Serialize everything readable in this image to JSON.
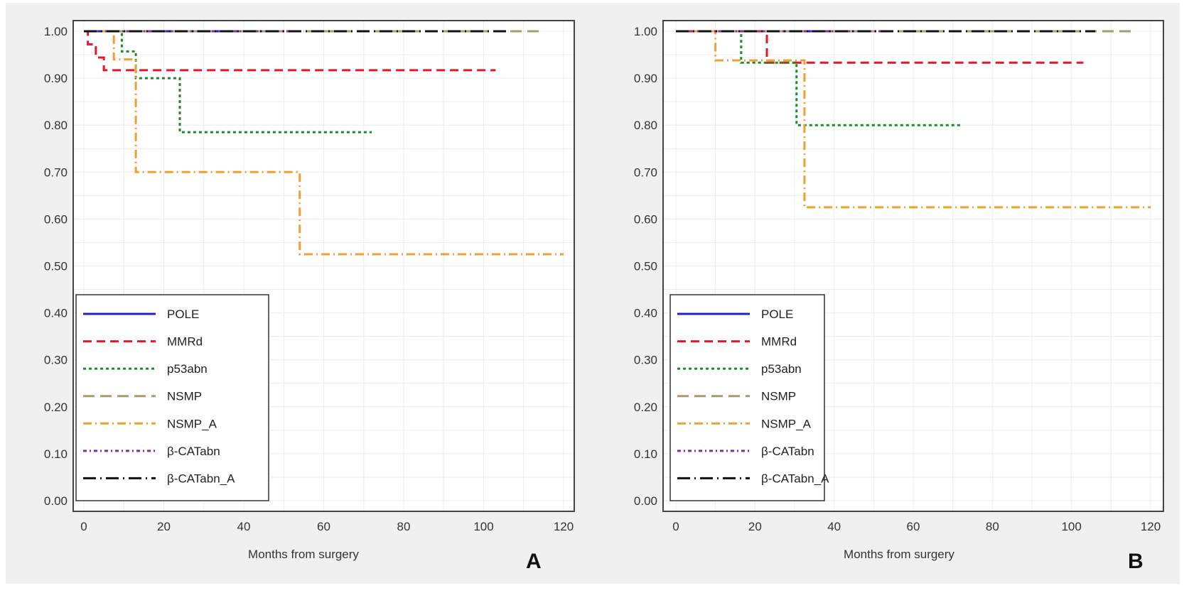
{
  "chart_data": [
    {
      "type": "line",
      "panel_label": "A",
      "title": "",
      "xlabel": "Months from surgery",
      "ylabel": "",
      "xlim": [
        0,
        120
      ],
      "ylim": [
        0,
        1
      ],
      "x_ticks": [
        "0",
        "20",
        "40",
        "60",
        "80",
        "100",
        "120"
      ],
      "y_ticks": [
        "0.00",
        "0.10",
        "0.20",
        "0.30",
        "0.40",
        "0.50",
        "0.60",
        "0.70",
        "0.80",
        "0.90",
        "1.00"
      ],
      "grid": true,
      "legend_position": "bottom-left",
      "series": [
        {
          "name": "POLE",
          "color": "#2222bb",
          "style": "solid",
          "steps": [
            [
              0,
              1.0
            ],
            [
              45,
              1.0
            ]
          ]
        },
        {
          "name": "MMRd",
          "color": "#e8142c",
          "style": "dashed",
          "steps": [
            [
              0,
              1.0
            ],
            [
              1,
              0.972
            ],
            [
              3,
              0.944
            ],
            [
              5,
              0.917
            ],
            [
              103,
              0.917
            ]
          ]
        },
        {
          "name": "p53abn",
          "color": "#1a8a2a",
          "style": "dotted",
          "steps": [
            [
              0,
              1.0
            ],
            [
              9.5,
              0.957
            ],
            [
              13,
              0.9
            ],
            [
              24,
              0.785
            ],
            [
              72,
              0.785
            ]
          ]
        },
        {
          "name": "NSMP",
          "color": "#a89c6a",
          "style": "longdash",
          "steps": [
            [
              0,
              1.0
            ],
            [
              115,
              1.0
            ]
          ]
        },
        {
          "name": "NSMP_A",
          "color": "#f0a030",
          "style": "dashdot",
          "steps": [
            [
              0,
              1.0
            ],
            [
              7.5,
              0.94
            ],
            [
              13,
              0.7
            ],
            [
              54,
              0.525
            ],
            [
              120,
              0.525
            ]
          ]
        },
        {
          "name": "β-CATabn",
          "color": "#8a2aa0",
          "style": "dashdotdot",
          "steps": [
            [
              0,
              1.0
            ],
            [
              55,
              1.0
            ]
          ]
        },
        {
          "name": "β-CATabn_A",
          "color": "#111111",
          "style": "longdashdot",
          "steps": [
            [
              0,
              1.0
            ],
            [
              106,
              1.0
            ]
          ]
        }
      ]
    },
    {
      "type": "line",
      "panel_label": "B",
      "title": "",
      "xlabel": "Months from surgery",
      "ylabel": "",
      "xlim": [
        0,
        120
      ],
      "ylim": [
        0,
        1
      ],
      "x_ticks": [
        "0",
        "20",
        "40",
        "60",
        "80",
        "100",
        "120"
      ],
      "y_ticks": [
        "0.00",
        "0.10",
        "0.20",
        "0.30",
        "0.40",
        "0.50",
        "0.60",
        "0.70",
        "0.80",
        "0.90",
        "1.00"
      ],
      "grid": true,
      "legend_position": "bottom-left",
      "series": [
        {
          "name": "POLE",
          "color": "#2222bb",
          "style": "solid",
          "steps": [
            [
              0,
              1.0
            ],
            [
              45,
              1.0
            ]
          ]
        },
        {
          "name": "MMRd",
          "color": "#e8142c",
          "style": "dashed",
          "steps": [
            [
              0,
              1.0
            ],
            [
              23,
              0.933
            ],
            [
              103,
              0.933
            ]
          ]
        },
        {
          "name": "p53abn",
          "color": "#1a8a2a",
          "style": "dotted",
          "steps": [
            [
              0,
              1.0
            ],
            [
              16.5,
              0.933
            ],
            [
              30.5,
              0.8
            ],
            [
              72,
              0.8
            ]
          ]
        },
        {
          "name": "NSMP",
          "color": "#a89c6a",
          "style": "longdash",
          "steps": [
            [
              0,
              1.0
            ],
            [
              115,
              1.0
            ]
          ]
        },
        {
          "name": "NSMP_A",
          "color": "#f0a030",
          "style": "dashdot",
          "steps": [
            [
              0,
              1.0
            ],
            [
              10,
              0.938
            ],
            [
              32.5,
              0.625
            ],
            [
              120,
              0.625
            ]
          ]
        },
        {
          "name": "β-CATabn",
          "color": "#8a2aa0",
          "style": "dashdotdot",
          "steps": [
            [
              0,
              1.0
            ],
            [
              55,
              1.0
            ]
          ]
        },
        {
          "name": "β-CATabn_A",
          "color": "#111111",
          "style": "longdashdot",
          "steps": [
            [
              0,
              1.0
            ],
            [
              106,
              1.0
            ]
          ]
        }
      ]
    }
  ]
}
